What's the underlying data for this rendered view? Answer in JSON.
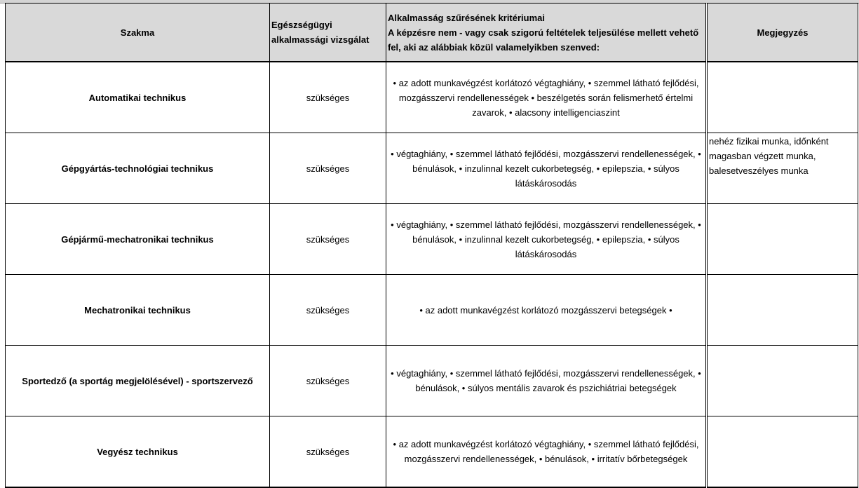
{
  "headers": {
    "szakma": "Szakma",
    "vizsgalat": "Egészségügyi alkalmassági vizsgálat",
    "kriterium_line1": "Alkalmasság szűrésének kritériumai",
    "kriterium_line2": "A képzésre nem - vagy csak szigorú feltételek teljesülése mellett vehető fel, aki az alábbiak közül valamelyikben szenved:",
    "megjegyzes": "Megjegyzés"
  },
  "rows": [
    {
      "szakma": "Automatikai technikus",
      "vizsgalat": "szükséges",
      "kriterium": "• az adott munkavégzést korlátozó végtaghiány, • szemmel látható fejlődési, mozgásszervi rendellenességek • beszélgetés során felismerhető értelmi zavarok, • alacsony intelligenciaszint",
      "megjegyzes": ""
    },
    {
      "szakma": "Gépgyártás-technológiai technikus",
      "vizsgalat": "szükséges",
      "kriterium": "• végtaghiány, • szemmel látható fejlődési, mozgásszervi rendellenességek, • bénulások, • inzulinnal kezelt cukorbetegség, • epilepszia, • súlyos látáskárosodás",
      "megjegyzes": "nehéz fizikai munka, időnként magasban végzett munka, balesetveszélyes munka"
    },
    {
      "szakma": "Gépjármű-mechatronikai technikus",
      "vizsgalat": "szükséges",
      "kriterium": "• végtaghiány, • szemmel látható fejlődési, mozgásszervi rendellenességek, • bénulások, • inzulinnal kezelt cukorbetegség, • epilepszia, • súlyos látáskárosodás",
      "megjegyzes": ""
    },
    {
      "szakma": "Mechatronikai technikus",
      "vizsgalat": "szükséges",
      "kriterium": "• az adott munkavégzést korlátozó mozgásszervi betegségek •",
      "megjegyzes": ""
    },
    {
      "szakma": "Sportedző (a sportág megjelölésével) - sportszervező",
      "vizsgalat": "szükséges",
      "kriterium": "• végtaghiány, • szemmel látható fejlődési, mozgásszervi rendellenességek, • bénulások, • súlyos mentális zavarok és pszichiátriai betegségek",
      "megjegyzes": ""
    },
    {
      "szakma": "Vegyész technikus",
      "vizsgalat": "szükséges",
      "kriterium": "• az adott munkavégzést korlátozó végtaghiány, • szemmel látható fejlődési, mozgásszervi rendellenességek, • bénulások, • irritatív bőrbetegségek",
      "megjegyzes": ""
    }
  ]
}
